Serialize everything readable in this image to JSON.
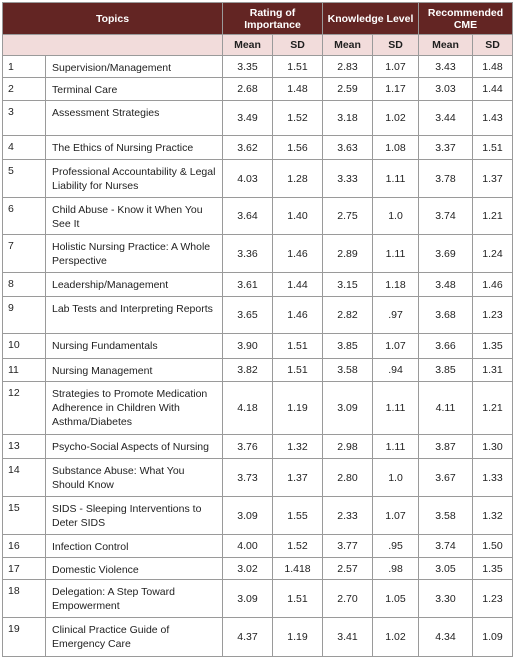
{
  "table": {
    "header": {
      "topics": "Topics",
      "groups": [
        "Rating of Importance",
        "Knowledge Level",
        "Recommended CME"
      ],
      "sub": [
        "Mean",
        "SD",
        "Mean",
        "SD",
        "Mean",
        "SD"
      ]
    },
    "rows": [
      [
        "1",
        "Supervision/Management",
        "3.35",
        "1.51",
        "2.83",
        "1.07",
        "3.43",
        "1.48"
      ],
      [
        "2",
        "Terminal Care",
        "2.68",
        "1.48",
        "2.59",
        "1.17",
        "3.03",
        "1.44"
      ],
      [
        "3",
        "Assessment Strategies",
        "3.49",
        "1.52",
        "3.18",
        "1.02",
        "3.44",
        "1.43"
      ],
      [
        "4",
        "The Ethics of Nursing Practice",
        "3.62",
        "1.56",
        "3.63",
        "1.08",
        "3.37",
        "1.51"
      ],
      [
        "5",
        "Professional Accountability & Legal Liability for Nurses",
        "4.03",
        "1.28",
        "3.33",
        "1.11",
        "3.78",
        "1.37"
      ],
      [
        "6",
        "Child Abuse - Know it When You See It",
        "3.64",
        "1.40",
        "2.75",
        "1.0",
        "3.74",
        "1.21"
      ],
      [
        "7",
        "Holistic Nursing Practice: A Whole Perspective",
        "3.36",
        "1.46",
        "2.89",
        "1.11",
        "3.69",
        "1.24"
      ],
      [
        "8",
        "Leadership/Management",
        "3.61",
        "1.44",
        "3.15",
        "1.18",
        "3.48",
        "1.46"
      ],
      [
        "9",
        "Lab Tests and Interpreting Reports",
        "3.65",
        "1.46",
        "2.82",
        ".97",
        "3.68",
        "1.23"
      ],
      [
        "10",
        "Nursing Fundamentals",
        "3.90",
        "1.51",
        "3.85",
        "1.07",
        "3.66",
        "1.35"
      ],
      [
        "11",
        "Nursing Management",
        "3.82",
        "1.51",
        "3.58",
        ".94",
        "3.85",
        "1.31"
      ],
      [
        "12",
        "Strategies to Promote Medication Adherence in Children With Asthma/Diabetes",
        "4.18",
        "1.19",
        "3.09",
        "1.11",
        "4.11",
        "1.21"
      ],
      [
        "13",
        "Psycho-Social Aspects of Nursing",
        "3.76",
        "1.32",
        "2.98",
        "1.11",
        "3.87",
        "1.30"
      ],
      [
        "14",
        "Substance Abuse: What You Should Know",
        "3.73",
        "1.37",
        "2.80",
        "1.0",
        "3.67",
        "1.33"
      ],
      [
        "15",
        "SIDS - Sleeping Interventions to Deter SIDS",
        "3.09",
        "1.55",
        "2.33",
        "1.07",
        "3.58",
        "1.32"
      ],
      [
        "16",
        "Infection Control",
        "4.00",
        "1.52",
        "3.77",
        ".95",
        "3.74",
        "1.50"
      ],
      [
        "17",
        "Domestic Violence",
        "3.02",
        "1.418",
        "2.57",
        ".98",
        "3.05",
        "1.35"
      ],
      [
        "18",
        "Delegation: A Step Toward Empowerment",
        "3.09",
        "1.51",
        "2.70",
        "1.05",
        "3.30",
        "1.23"
      ],
      [
        "19",
        "Clinical Practice Guide of Emergency Care",
        "4.37",
        "1.19",
        "3.41",
        "1.02",
        "4.34",
        "1.09"
      ]
    ]
  }
}
